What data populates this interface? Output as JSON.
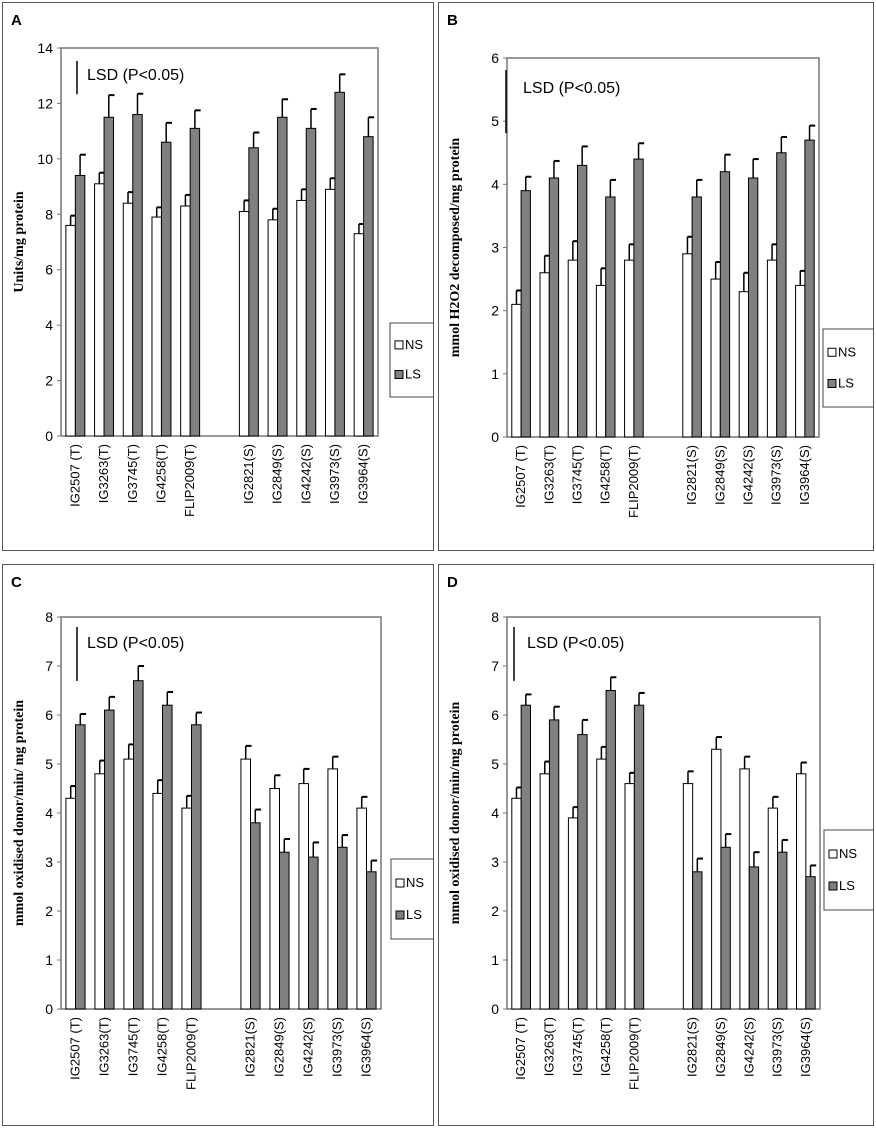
{
  "chart_data": [
    {
      "panel": "A",
      "type": "bar",
      "ylabel": "Units/mg protein",
      "ylim": [
        0,
        14
      ],
      "yticks": [
        0,
        2,
        4,
        6,
        8,
        10,
        12,
        14
      ],
      "annotation": "LSD (P<0.05)",
      "lsd_value": 1.2,
      "legend": [
        "NS",
        "LS"
      ],
      "categories": [
        "IG2507 (T)",
        "IG3263(T)",
        "IG3745(T)",
        "IG4258(T)",
        "FLIP2009(T)",
        "IG2821(S)",
        "IG2849(S)",
        "IG4242(S)",
        "IG3973(S)",
        "IG3964(S)"
      ],
      "series": [
        {
          "name": "NS",
          "values": [
            7.6,
            9.1,
            8.4,
            7.9,
            8.3,
            8.1,
            7.8,
            8.5,
            8.9,
            7.3
          ],
          "errors": [
            0.35,
            0.4,
            0.4,
            0.35,
            0.4,
            0.4,
            0.4,
            0.4,
            0.4,
            0.35
          ]
        },
        {
          "name": "LS",
          "values": [
            9.4,
            11.5,
            11.6,
            10.6,
            11.1,
            10.4,
            11.5,
            11.1,
            12.4,
            10.8
          ],
          "errors": [
            0.75,
            0.8,
            0.75,
            0.7,
            0.65,
            0.55,
            0.65,
            0.7,
            0.65,
            0.7
          ]
        }
      ]
    },
    {
      "panel": "B",
      "type": "bar",
      "ylabel": "mmol H2O2 decomposed/mg protein",
      "ylim": [
        0,
        6
      ],
      "yticks": [
        0,
        1,
        2,
        3,
        4,
        5,
        6
      ],
      "annotation": "LSD (P<0.05)",
      "lsd_value": 1.0,
      "legend": [
        "NS",
        "LS"
      ],
      "categories": [
        "IG2507 (T)",
        "IG3263(T)",
        "IG3745(T)",
        "IG4258(T)",
        "FLIP2009(T)",
        "IG2821(S)",
        "IG2849(S)",
        "IG4242(S)",
        "IG3973(S)",
        "IG3964(S)"
      ],
      "series": [
        {
          "name": "NS",
          "values": [
            2.1,
            2.6,
            2.8,
            2.4,
            2.8,
            2.9,
            2.5,
            2.3,
            2.8,
            2.4
          ],
          "errors": [
            0.22,
            0.27,
            0.3,
            0.27,
            0.25,
            0.27,
            0.27,
            0.3,
            0.25,
            0.23
          ]
        },
        {
          "name": "LS",
          "values": [
            3.9,
            4.1,
            4.3,
            3.8,
            4.4,
            3.8,
            4.2,
            4.1,
            4.5,
            4.7
          ],
          "errors": [
            0.22,
            0.27,
            0.3,
            0.27,
            0.25,
            0.27,
            0.27,
            0.3,
            0.25,
            0.23
          ]
        }
      ]
    },
    {
      "panel": "C",
      "type": "bar",
      "ylabel": "mmol oxidised donor/min/ mg protein",
      "ylim": [
        0,
        8
      ],
      "yticks": [
        0,
        1,
        2,
        3,
        4,
        5,
        6,
        7,
        8
      ],
      "annotation": "LSD (P<0.05)",
      "lsd_value": 1.1,
      "legend": [
        "NS",
        "LS"
      ],
      "categories": [
        "IG2507 (T)",
        "IG3263(T)",
        "IG3745(T)",
        "IG4258(T)",
        "FLIP2009(T)",
        "IG2821(S)",
        "IG2849(S)",
        "IG4242(S)",
        "IG3973(S)",
        "IG3964(S)"
      ],
      "series": [
        {
          "name": "NS",
          "values": [
            4.3,
            4.8,
            5.1,
            4.4,
            4.1,
            5.1,
            4.5,
            4.6,
            4.9,
            4.1
          ],
          "errors": [
            0.25,
            0.27,
            0.3,
            0.27,
            0.25,
            0.27,
            0.27,
            0.3,
            0.25,
            0.23
          ]
        },
        {
          "name": "LS",
          "values": [
            5.8,
            6.1,
            6.7,
            6.2,
            5.8,
            3.8,
            3.2,
            3.1,
            3.3,
            2.8
          ],
          "errors": [
            0.22,
            0.27,
            0.3,
            0.27,
            0.25,
            0.27,
            0.27,
            0.3,
            0.25,
            0.23
          ]
        }
      ]
    },
    {
      "panel": "D",
      "type": "bar",
      "ylabel": "mmol oxidised donor/min/mg protein",
      "ylim": [
        0,
        8
      ],
      "yticks": [
        0,
        1,
        2,
        3,
        4,
        5,
        6,
        7,
        8
      ],
      "annotation": "LSD (P<0.05)",
      "lsd_value": 1.1,
      "legend": [
        "NS",
        "LS"
      ],
      "categories": [
        "IG2507 (T)",
        "IG3263(T)",
        "IG3745(T)",
        "IG4258(T)",
        "FLIP2009(T)",
        "IG2821(S)",
        "IG2849(S)",
        "IG4242(S)",
        "IG3973(S)",
        "IG3964(S)"
      ],
      "series": [
        {
          "name": "NS",
          "values": [
            4.3,
            4.8,
            3.9,
            5.1,
            4.6,
            4.6,
            5.3,
            4.9,
            4.1,
            4.8
          ],
          "errors": [
            0.22,
            0.25,
            0.22,
            0.25,
            0.22,
            0.25,
            0.25,
            0.25,
            0.23,
            0.23
          ]
        },
        {
          "name": "LS",
          "values": [
            6.2,
            5.9,
            5.6,
            6.5,
            6.2,
            2.8,
            3.3,
            2.9,
            3.2,
            2.7
          ],
          "errors": [
            0.22,
            0.27,
            0.3,
            0.27,
            0.25,
            0.27,
            0.27,
            0.3,
            0.25,
            0.23
          ]
        }
      ]
    }
  ],
  "colors": {
    "ns_fill": "#ffffff",
    "ls_fill": "#808080",
    "bar_stroke": "#000000",
    "frame": "#555555"
  }
}
